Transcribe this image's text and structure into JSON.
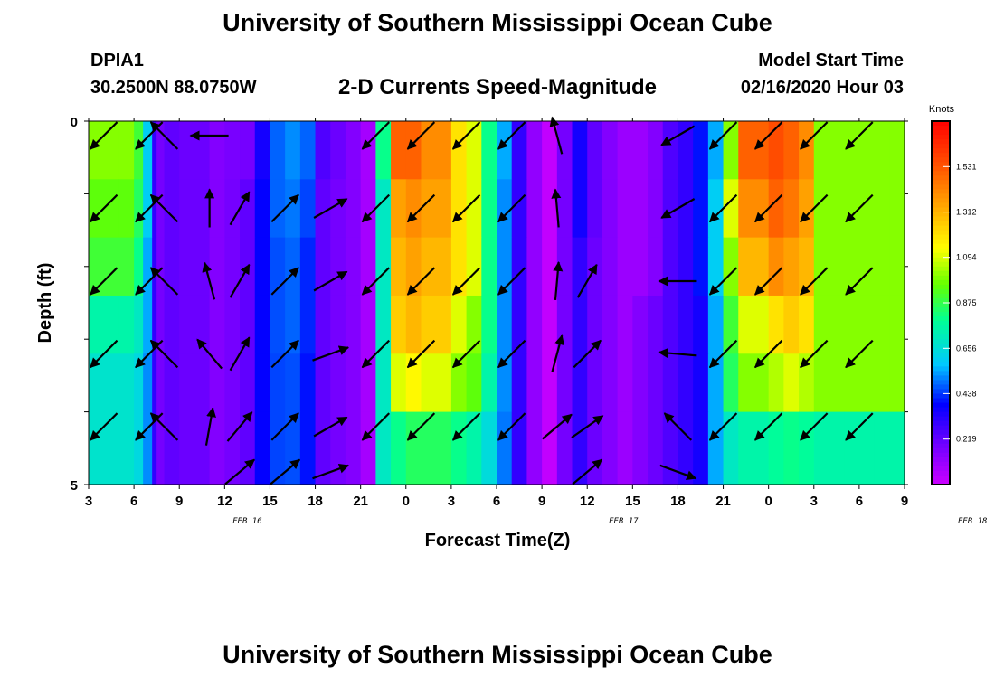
{
  "header": {
    "title": "University of Southern Mississippi Ocean Cube",
    "station": "DPIA1",
    "coordinates": "30.2500N 88.0750W",
    "subtitle": "2-D Currents Speed-Magnitude",
    "model_start_label": "Model Start Time",
    "model_start_value": "02/16/2020 Hour 03"
  },
  "footer": {
    "title": "University of Southern Mississippi Ocean Cube"
  },
  "chart_data": {
    "type": "heatmap",
    "title": "2-D Currents Speed-Magnitude",
    "xlabel": "Forecast Time(Z)",
    "ylabel": "Depth (ft)",
    "x_tick_labels": [
      "3",
      "6",
      "9",
      "12",
      "15",
      "18",
      "21",
      "0",
      "3",
      "6",
      "9",
      "12",
      "15",
      "18",
      "21",
      "0",
      "3",
      "6",
      "9"
    ],
    "date_labels": [
      {
        "text": "FEB 16",
        "tick_index": 3.5
      },
      {
        "text": "FEB 17",
        "tick_index": 11.8
      },
      {
        "text": "FEB 18",
        "tick_index": 19.5
      }
    ],
    "y_tick_labels": [
      "0",
      "5"
    ],
    "ylim": [
      0,
      5
    ],
    "x_hours": [
      0,
      54
    ],
    "legend": {
      "title": "Knots",
      "placement": "right",
      "ticks": [
        "1.531",
        "1.312",
        "1.094",
        "0.875",
        "0.656",
        "0.438",
        "0.219"
      ],
      "range": [
        0,
        1.75
      ]
    },
    "depth_bands": [
      0,
      1,
      2,
      3,
      4
    ],
    "speed_profile": {
      "hours": [
        0,
        2,
        3,
        3.6,
        4.2,
        4.5,
        5,
        6,
        8,
        9,
        10,
        11,
        12,
        13,
        14,
        15,
        16,
        17,
        18,
        19,
        20,
        21,
        22,
        24,
        25,
        26,
        27,
        28,
        29,
        30,
        31,
        32,
        33,
        34,
        35,
        36,
        37,
        38,
        39,
        40,
        41,
        42,
        43,
        45,
        46,
        47,
        48,
        49,
        50,
        52,
        53,
        54
      ],
      "bands": [
        [
          1.0,
          1.0,
          0.9,
          0.6,
          0.3,
          0.18,
          0.22,
          0.2,
          0.15,
          0.17,
          0.18,
          0.35,
          0.48,
          0.52,
          0.48,
          0.25,
          0.2,
          0.15,
          0.08,
          0.8,
          1.5,
          1.5,
          1.4,
          1.2,
          1.1,
          0.8,
          0.55,
          0.3,
          0.12,
          0.02,
          0.18,
          0.35,
          0.22,
          0.15,
          0.1,
          0.1,
          0.15,
          0.25,
          0.3,
          0.4,
          0.55,
          1.0,
          1.5,
          1.55,
          1.5,
          1.4,
          1.0,
          1.0,
          1.0,
          1.0,
          1.0,
          1.0
        ],
        [
          0.95,
          0.95,
          0.85,
          0.6,
          0.3,
          0.18,
          0.22,
          0.2,
          0.15,
          0.18,
          0.22,
          0.38,
          0.48,
          0.5,
          0.45,
          0.22,
          0.18,
          0.15,
          0.08,
          0.7,
          1.35,
          1.4,
          1.35,
          1.2,
          1.1,
          0.8,
          0.52,
          0.3,
          0.12,
          0.02,
          0.18,
          0.35,
          0.22,
          0.15,
          0.1,
          0.1,
          0.15,
          0.25,
          0.3,
          0.4,
          0.6,
          1.1,
          1.4,
          1.5,
          1.45,
          1.35,
          1.0,
          1.0,
          1.0,
          1.0,
          1.0,
          1.0
        ],
        [
          0.9,
          0.9,
          0.8,
          0.55,
          0.3,
          0.18,
          0.22,
          0.2,
          0.15,
          0.18,
          0.22,
          0.38,
          0.46,
          0.48,
          0.42,
          0.22,
          0.18,
          0.15,
          0.08,
          0.7,
          1.3,
          1.35,
          1.3,
          1.2,
          1.1,
          0.8,
          0.52,
          0.3,
          0.12,
          0.02,
          0.18,
          0.3,
          0.2,
          0.15,
          0.1,
          0.1,
          0.15,
          0.25,
          0.3,
          0.4,
          0.6,
          1.0,
          1.3,
          1.4,
          1.35,
          1.3,
          1.0,
          1.0,
          1.0,
          1.0,
          1.0,
          1.0
        ],
        [
          0.75,
          0.75,
          0.7,
          0.55,
          0.3,
          0.18,
          0.22,
          0.2,
          0.15,
          0.18,
          0.22,
          0.38,
          0.46,
          0.48,
          0.42,
          0.22,
          0.18,
          0.15,
          0.08,
          0.7,
          1.25,
          1.3,
          1.25,
          1.1,
          1.0,
          0.8,
          0.52,
          0.3,
          0.12,
          0.02,
          0.18,
          0.3,
          0.2,
          0.15,
          0.1,
          0.15,
          0.2,
          0.25,
          0.3,
          0.35,
          0.55,
          0.9,
          1.1,
          1.2,
          1.25,
          1.2,
          1.0,
          1.0,
          1.0,
          1.0,
          1.0,
          1.0
        ],
        [
          0.68,
          0.68,
          0.64,
          0.52,
          0.3,
          0.18,
          0.22,
          0.2,
          0.15,
          0.18,
          0.22,
          0.38,
          0.45,
          0.46,
          0.4,
          0.22,
          0.18,
          0.15,
          0.08,
          0.7,
          1.1,
          1.15,
          1.1,
          1.0,
          0.95,
          0.75,
          0.52,
          0.3,
          0.12,
          0.02,
          0.18,
          0.3,
          0.2,
          0.15,
          0.1,
          0.15,
          0.2,
          0.25,
          0.3,
          0.35,
          0.55,
          0.85,
          1.0,
          1.05,
          1.1,
          1.05,
          1.0,
          1.0,
          1.0,
          1.0,
          1.0,
          1.0
        ]
      ],
      "bottom_band": [
        0.68,
        0.68,
        0.64,
        0.52,
        0.3,
        0.18,
        0.22,
        0.2,
        0.15,
        0.18,
        0.22,
        0.38,
        0.45,
        0.46,
        0.4,
        0.22,
        0.18,
        0.15,
        0.08,
        0.7,
        0.8,
        0.85,
        0.85,
        0.8,
        0.75,
        0.65,
        0.5,
        0.3,
        0.12,
        0.02,
        0.18,
        0.3,
        0.2,
        0.15,
        0.1,
        0.15,
        0.2,
        0.25,
        0.3,
        0.35,
        0.55,
        0.7,
        0.75,
        0.78,
        0.8,
        0.78,
        0.75,
        0.75,
        0.75,
        0.75,
        0.75,
        0.75
      ]
    },
    "vectors": {
      "hours": [
        1,
        4,
        5,
        8,
        10,
        13,
        16,
        19,
        22,
        25,
        28,
        31,
        33,
        36,
        39,
        42,
        45,
        48,
        51
      ],
      "rows": [
        [
          135,
          135,
          225,
          180,
          0,
          0,
          0,
          135,
          135,
          135,
          135,
          255,
          0,
          0,
          150,
          135,
          135,
          135,
          135
        ],
        [
          135,
          135,
          225,
          270,
          300,
          315,
          330,
          135,
          135,
          135,
          135,
          265,
          0,
          0,
          150,
          135,
          135,
          135,
          135
        ],
        [
          135,
          135,
          225,
          255,
          300,
          315,
          330,
          135,
          135,
          135,
          135,
          275,
          300,
          0,
          180,
          135,
          135,
          135,
          135
        ],
        [
          135,
          135,
          225,
          230,
          300,
          315,
          340,
          135,
          135,
          135,
          135,
          285,
          315,
          0,
          185,
          135,
          135,
          135,
          135
        ],
        [
          135,
          135,
          225,
          280,
          310,
          315,
          330,
          135,
          135,
          135,
          135,
          320,
          325,
          0,
          225,
          135,
          135,
          135,
          135
        ]
      ],
      "bottom_row": [
        0,
        0,
        0,
        0,
        320,
        320,
        340,
        0,
        0,
        0,
        0,
        0,
        320,
        0,
        20,
        0,
        0,
        0,
        0
      ]
    }
  }
}
